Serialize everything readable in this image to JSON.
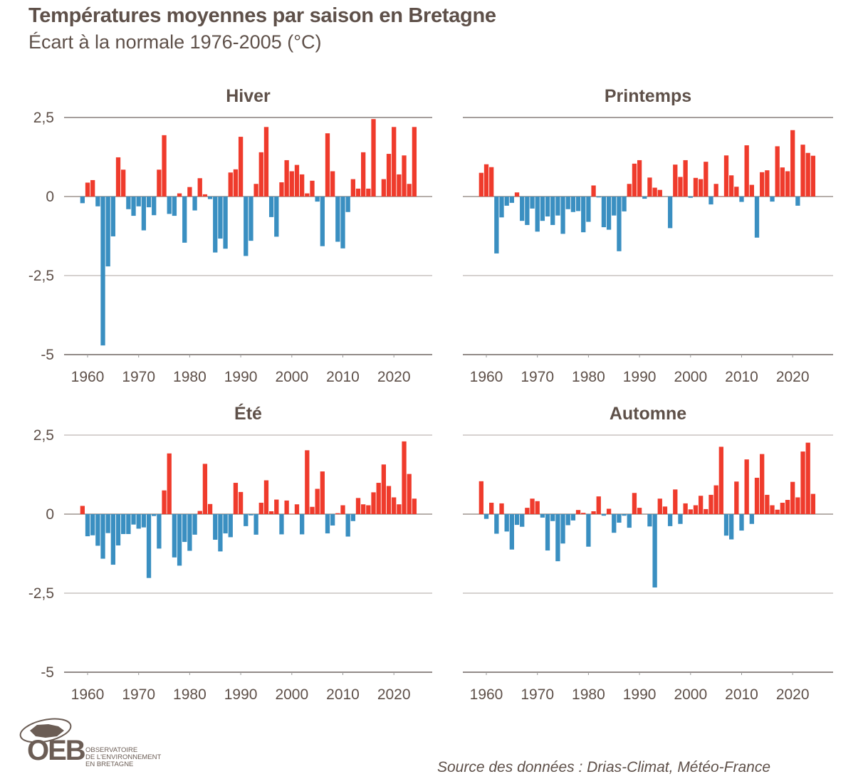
{
  "title": "Températures moyennes par saison en Bretagne",
  "subtitle": "Écart à la normale 1976-2005 (°C)",
  "source": "Source des données : Drias-Climat, Météo-France",
  "logo": {
    "acronym": "OEB",
    "lines": [
      "OBSERVATOIRE",
      "DE L'ENVIRONNEMENT",
      "EN BRETAGNE"
    ]
  },
  "colors": {
    "positive": "#ef3b2c",
    "negative": "#3a8fc1",
    "text": "#5e5049"
  },
  "chart_data": [
    {
      "type": "bar",
      "title": "Hiver",
      "ylim": [
        -5,
        2.5
      ],
      "yticks": [
        "2,5",
        "0",
        "-2,5",
        "-5"
      ],
      "ytick_values": [
        2.5,
        0,
        -2.5,
        -5
      ],
      "xticks": [
        "1960",
        "1970",
        "1980",
        "1990",
        "2000",
        "2010",
        "2020"
      ],
      "x_start": 1959,
      "values": [
        -0.21,
        0.44,
        0.52,
        -0.31,
        -4.71,
        -2.21,
        -1.26,
        1.24,
        0.85,
        -0.4,
        -0.61,
        -0.31,
        -1.07,
        -0.34,
        -0.59,
        0.85,
        1.94,
        -0.55,
        -0.61,
        0.1,
        -1.46,
        0.3,
        -0.44,
        0.58,
        0.07,
        -0.08,
        -1.77,
        -1.33,
        -1.65,
        0.76,
        0.86,
        1.89,
        -1.88,
        -1.4,
        0.4,
        1.4,
        2.2,
        -0.65,
        -1.27,
        0.45,
        1.15,
        0.8,
        1.0,
        0.7,
        0.1,
        0.5,
        -0.16,
        -1.57,
        2.0,
        0.8,
        -1.43,
        -1.64,
        -0.49,
        0.55,
        0.25,
        1.4,
        0.25,
        2.45,
        0.0,
        0.55,
        1.35,
        2.2,
        0.7,
        1.3,
        0.4,
        2.2
      ]
    },
    {
      "type": "bar",
      "title": "Printemps",
      "ylim": [
        -5,
        2.5
      ],
      "yticks": [
        "2,5",
        "0",
        "-2,5",
        "-5"
      ],
      "ytick_values": [
        2.5,
        0,
        -2.5,
        -5
      ],
      "xticks": [
        "1960",
        "1970",
        "1980",
        "1990",
        "2000",
        "2010",
        "2020"
      ],
      "x_start": 1959,
      "values": [
        0.75,
        1.02,
        0.93,
        -1.8,
        -0.66,
        -0.29,
        -0.2,
        0.13,
        -0.77,
        -0.9,
        -0.38,
        -1.11,
        -0.77,
        -0.63,
        -0.9,
        -0.6,
        -1.18,
        -0.4,
        -0.49,
        -0.46,
        -1.13,
        -0.8,
        0.35,
        -0.03,
        -0.97,
        -1.05,
        -0.6,
        -1.73,
        -0.47,
        0.4,
        1.04,
        1.15,
        -0.07,
        0.6,
        0.28,
        0.21,
        0.0,
        -1.0,
        1.01,
        0.62,
        1.15,
        -0.04,
        0.59,
        0.55,
        1.1,
        -0.25,
        0.4,
        0.01,
        1.3,
        0.67,
        0.31,
        -0.17,
        1.62,
        0.37,
        -1.3,
        0.77,
        0.83,
        -0.16,
        1.59,
        0.92,
        0.8,
        2.1,
        -0.29,
        1.64,
        1.38,
        1.29
      ]
    },
    {
      "type": "bar",
      "title": "Été",
      "ylim": [
        -5,
        2.5
      ],
      "yticks": [
        "2,5",
        "0",
        "-2,5",
        "-5"
      ],
      "ytick_values": [
        2.5,
        0,
        -2.5,
        -5
      ],
      "xticks": [
        "1960",
        "1970",
        "1980",
        "1990",
        "2000",
        "2010",
        "2020"
      ],
      "x_start": 1959,
      "values": [
        0.26,
        -0.7,
        -0.67,
        -1.0,
        -1.41,
        -0.6,
        -1.6,
        -0.99,
        -0.63,
        -0.63,
        -0.33,
        -0.46,
        -0.42,
        -2.02,
        -0.06,
        -1.09,
        0.75,
        1.92,
        -1.37,
        -1.63,
        -0.88,
        -1.16,
        -0.65,
        0.1,
        1.59,
        0.32,
        -0.81,
        -1.18,
        -0.61,
        -0.73,
        0.99,
        0.7,
        -0.38,
        -0.04,
        -0.65,
        0.36,
        1.07,
        0.09,
        0.46,
        -0.64,
        0.43,
        0.01,
        0.31,
        -0.64,
        2.02,
        0.23,
        0.8,
        1.35,
        -0.61,
        -0.36,
        0.03,
        0.28,
        -0.71,
        -0.22,
        0.51,
        0.31,
        0.28,
        0.69,
        0.99,
        1.57,
        0.89,
        0.53,
        0.31,
        2.3,
        1.27,
        0.49
      ]
    },
    {
      "type": "bar",
      "title": "Automne",
      "ylim": [
        -5,
        2.5
      ],
      "yticks": [
        "2,5",
        "0",
        "-2,5",
        "-5"
      ],
      "ytick_values": [
        2.5,
        0,
        -2.5,
        -5
      ],
      "xticks": [
        "1960",
        "1970",
        "1980",
        "1990",
        "2000",
        "2010",
        "2020"
      ],
      "x_start": 1959,
      "values": [
        1.04,
        -0.15,
        0.36,
        -0.62,
        0.34,
        -0.55,
        -1.12,
        -0.34,
        -0.4,
        0.2,
        0.49,
        0.41,
        -0.11,
        -1.15,
        -0.22,
        -1.49,
        -0.93,
        -0.35,
        -0.2,
        0.13,
        0.04,
        -1.03,
        0.09,
        0.56,
        -0.05,
        0.17,
        -0.59,
        -0.27,
        -0.05,
        -0.43,
        0.67,
        0.2,
        0.0,
        -0.39,
        -2.32,
        0.49,
        0.24,
        -0.38,
        0.78,
        -0.31,
        0.34,
        0.15,
        0.28,
        0.58,
        0.16,
        0.61,
        0.91,
        2.13,
        -0.68,
        -0.8,
        1.03,
        -0.52,
        1.73,
        -0.31,
        1.15,
        1.9,
        0.61,
        0.28,
        0.14,
        0.36,
        0.45,
        1.02,
        0.53,
        1.98,
        2.26,
        0.64
      ]
    }
  ]
}
